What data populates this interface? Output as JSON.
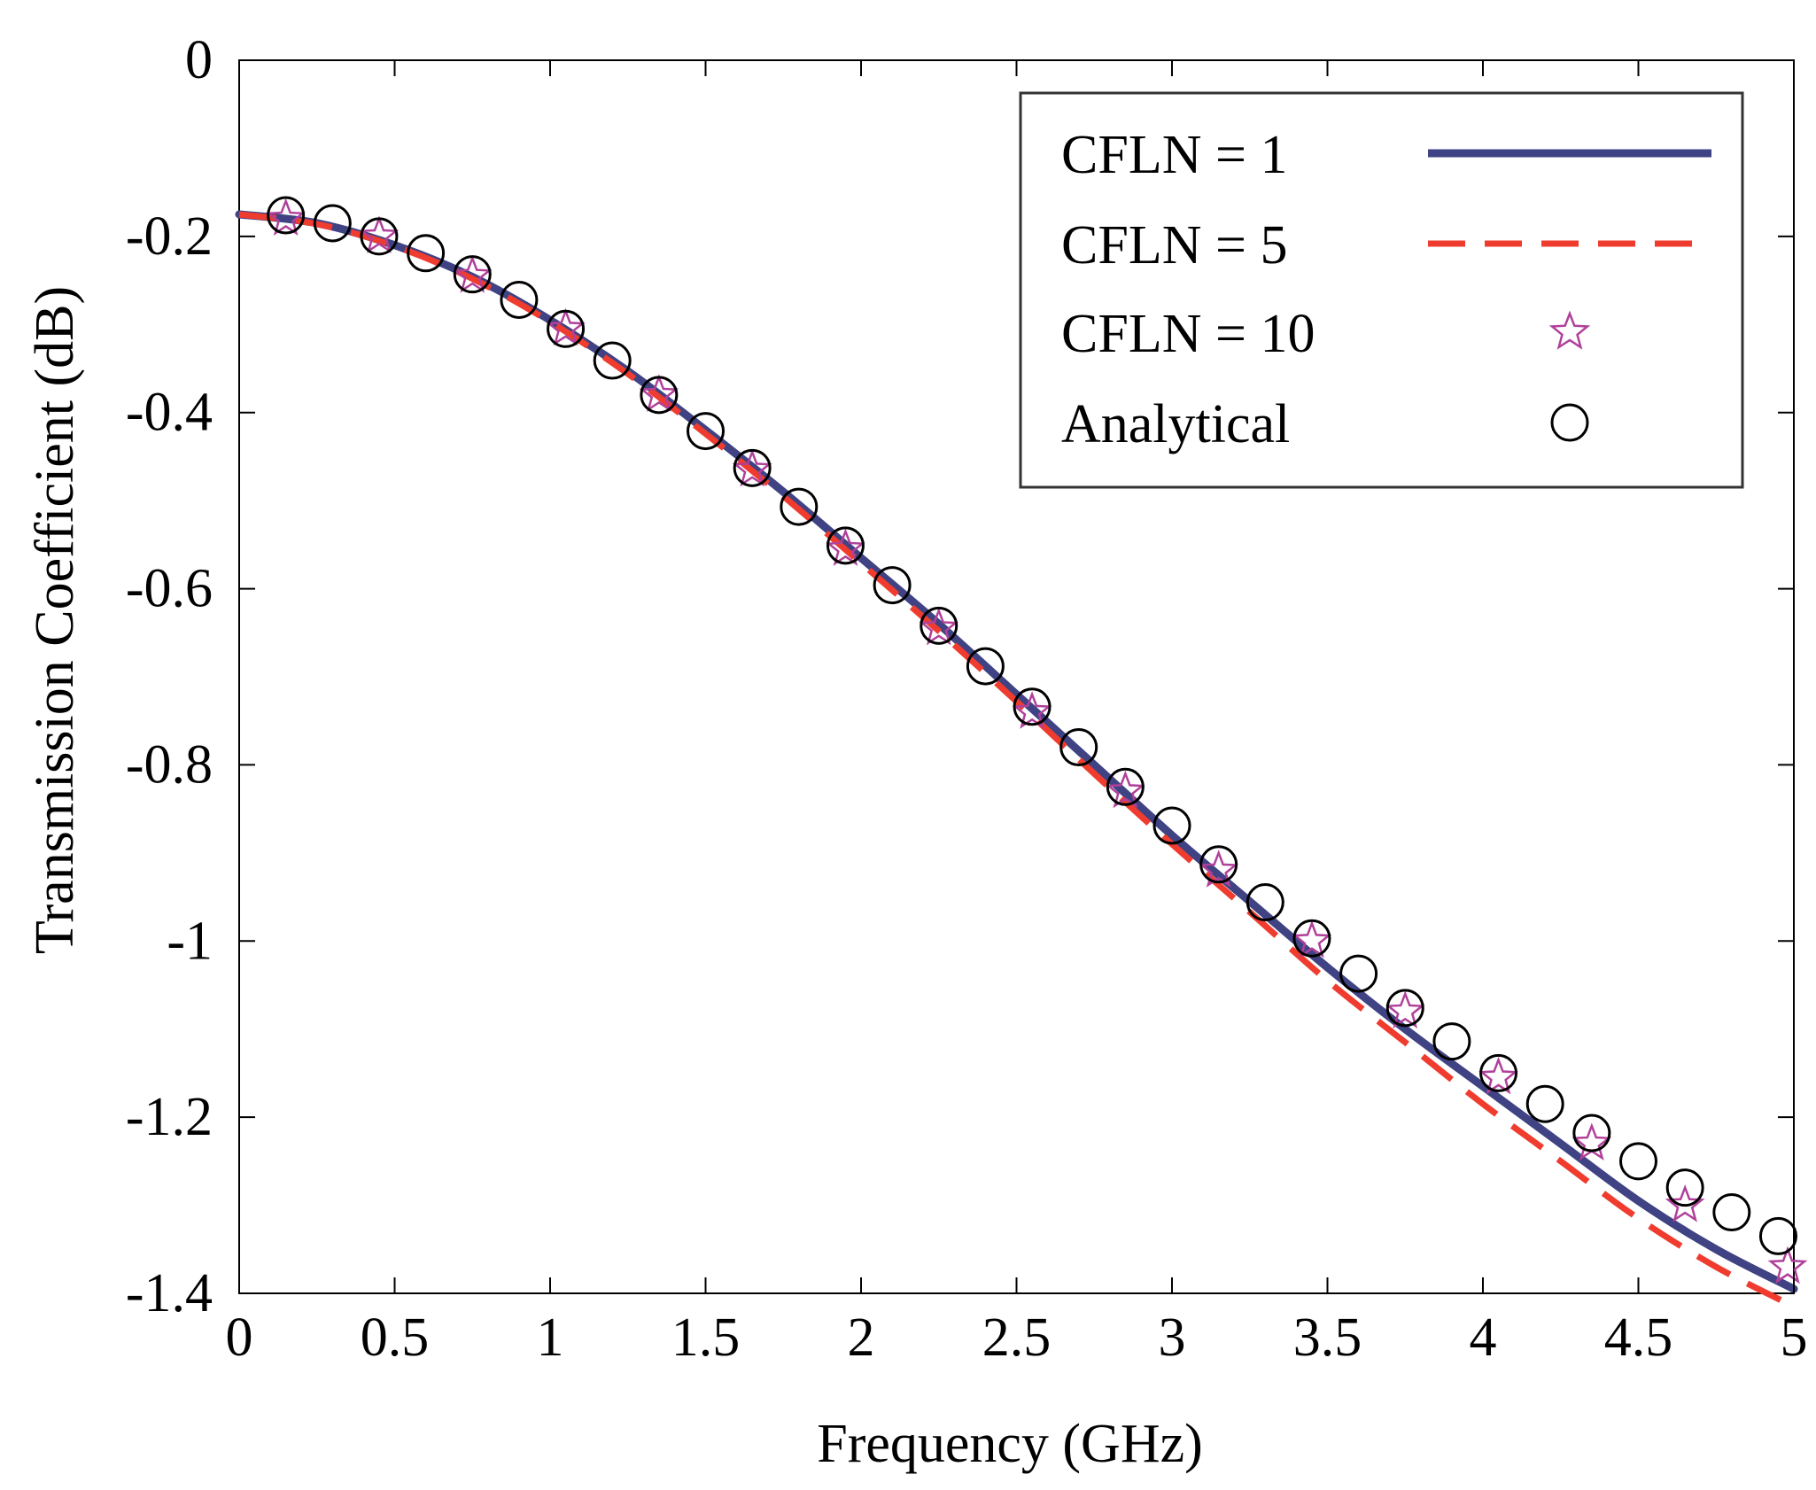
{
  "chart_data": {
    "type": "line",
    "title": "",
    "xlabel": "Frequency (GHz)",
    "ylabel": "Transmission Coefficient (dB)",
    "xlim": [
      0,
      5
    ],
    "ylim": [
      -1.4,
      0
    ],
    "xticks": [
      0,
      0.5,
      1,
      1.5,
      2,
      2.5,
      3,
      3.5,
      4,
      4.5,
      5
    ],
    "xtick_labels": [
      "0",
      "0.5",
      "1",
      "1.5",
      "2",
      "2.5",
      "3",
      "3.5",
      "4",
      "4.5",
      "5"
    ],
    "yticks": [
      0,
      -0.2,
      -0.4,
      -0.6,
      -0.8,
      -1,
      -1.2,
      -1.4
    ],
    "ytick_labels": [
      "0",
      "-0.2",
      "-0.4",
      "-0.6",
      "-0.8",
      "-1",
      "-1.2",
      "-1.4"
    ],
    "grid": false,
    "legend_position": "top-right",
    "colors": {
      "cfln1": "#3f4283",
      "cfln5": "#ef3c2f",
      "cfln10": "#b0409a",
      "analytical": "#000000"
    },
    "series": [
      {
        "name": "CFLN = 1",
        "style": "solid-line",
        "x": [
          0,
          0.25,
          0.5,
          0.75,
          1,
          1.25,
          1.5,
          1.75,
          2,
          2.25,
          2.5,
          2.75,
          3,
          3.25,
          3.5,
          3.75,
          4,
          4.25,
          4.5,
          4.75,
          5
        ],
        "values": [
          -0.175,
          -0.185,
          -0.21,
          -0.246,
          -0.295,
          -0.353,
          -0.42,
          -0.49,
          -0.565,
          -0.64,
          -0.72,
          -0.8,
          -0.88,
          -0.955,
          -1.03,
          -1.1,
          -1.165,
          -1.23,
          -1.295,
          -1.35,
          -1.395
        ]
      },
      {
        "name": "CFLN = 5",
        "style": "dashed-line",
        "x": [
          0,
          0.25,
          0.5,
          0.75,
          1,
          1.25,
          1.5,
          1.75,
          2,
          2.25,
          2.5,
          2.75,
          3,
          3.25,
          3.5,
          3.75,
          4,
          4.25,
          4.5,
          4.75,
          5
        ],
        "values": [
          -0.175,
          -0.186,
          -0.211,
          -0.248,
          -0.297,
          -0.356,
          -0.424,
          -0.495,
          -0.571,
          -0.648,
          -0.728,
          -0.81,
          -0.89,
          -0.967,
          -1.045,
          -1.115,
          -1.185,
          -1.25,
          -1.315,
          -1.37,
          -1.415
        ]
      },
      {
        "name": "CFLN = 10",
        "style": "star-markers",
        "x": [
          0.15,
          0.45,
          0.75,
          1.05,
          1.35,
          1.65,
          1.95,
          2.25,
          2.55,
          2.85,
          3.15,
          3.45,
          3.75,
          4.05,
          4.35,
          4.65,
          4.98
        ],
        "values": [
          -0.18,
          -0.2,
          -0.245,
          -0.305,
          -0.38,
          -0.465,
          -0.555,
          -0.645,
          -0.74,
          -0.83,
          -0.92,
          -1.0,
          -1.08,
          -1.155,
          -1.23,
          -1.3,
          -1.37
        ]
      },
      {
        "name": "Analytical",
        "style": "circle-markers",
        "x": [
          0.15,
          0.3,
          0.45,
          0.6,
          0.75,
          0.9,
          1.05,
          1.2,
          1.35,
          1.5,
          1.65,
          1.8,
          1.95,
          2.1,
          2.25,
          2.4,
          2.55,
          2.7,
          2.85,
          3.0,
          3.15,
          3.3,
          3.45,
          3.6,
          3.75,
          3.9,
          4.05,
          4.2,
          4.35,
          4.5,
          4.65,
          4.8,
          4.95
        ],
        "values": [
          -0.176,
          -0.185,
          -0.2,
          -0.219,
          -0.243,
          -0.272,
          -0.305,
          -0.341,
          -0.38,
          -0.421,
          -0.463,
          -0.507,
          -0.551,
          -0.596,
          -0.642,
          -0.688,
          -0.734,
          -0.78,
          -0.825,
          -0.869,
          -0.913,
          -0.956,
          -0.997,
          -1.037,
          -1.076,
          -1.114,
          -1.15,
          -1.185,
          -1.218,
          -1.25,
          -1.28,
          -1.308,
          -1.335
        ]
      }
    ]
  }
}
